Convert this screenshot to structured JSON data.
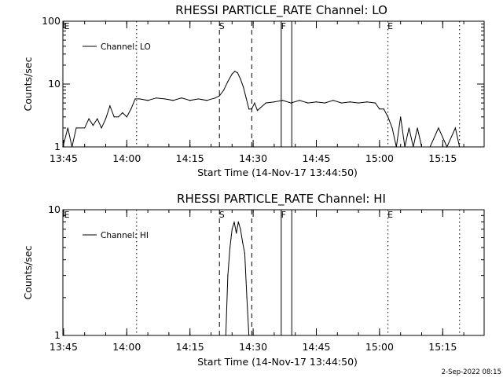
{
  "footer_date": "2-Sep-2022 08:15",
  "chart_data": [
    {
      "type": "line",
      "title": "RHESSI PARTICLE_RATE Channel: LO",
      "xlabel": "Start Time (14-Nov-17 13:44:50)",
      "ylabel": "Counts/sec",
      "y_scale": "log",
      "ylim": [
        1,
        100
      ],
      "y_ticks": [
        {
          "v": 1,
          "label": "1"
        },
        {
          "v": 10,
          "label": "10"
        },
        {
          "v": 100,
          "label": "100"
        }
      ],
      "xlim": [
        "13:44:50",
        "15:24:50"
      ],
      "x_ticks": [
        "13:45",
        "14:00",
        "14:15",
        "14:30",
        "14:45",
        "15:00",
        "15:15"
      ],
      "legend": {
        "label": "Channel: LO",
        "placement": "top-left"
      },
      "grid": false,
      "markers": [
        {
          "label": "E",
          "time": "13:44:50",
          "style": "dotted",
          "text_only": true
        },
        {
          "label": "",
          "time": "14:02:20",
          "style": "dotted"
        },
        {
          "label": "S",
          "time": "14:22:00",
          "style": "dashed"
        },
        {
          "label": "",
          "time": "14:29:40",
          "style": "dashed"
        },
        {
          "label": "F",
          "time": "14:36:40",
          "style": "solid"
        },
        {
          "label": "",
          "time": "14:39:10",
          "style": "solid"
        },
        {
          "label": "E",
          "time": "15:02:00",
          "style": "dotted"
        },
        {
          "label": "",
          "time": "15:19:00",
          "style": "dotted"
        }
      ],
      "series": [
        {
          "name": "Channel: LO",
          "x": [
            "13:44:50",
            "13:46:00",
            "13:47:00",
            "13:48:00",
            "13:50:00",
            "13:51:00",
            "13:52:00",
            "13:53:00",
            "13:54:00",
            "13:55:00",
            "13:56:00",
            "13:57:00",
            "13:58:00",
            "13:59:00",
            "14:00:00",
            "14:01:00",
            "14:02:00",
            "14:03:00",
            "14:05:00",
            "14:07:00",
            "14:09:00",
            "14:11:00",
            "14:13:00",
            "14:15:00",
            "14:17:00",
            "14:19:00",
            "14:21:00",
            "14:22:00",
            "14:23:00",
            "14:24:00",
            "14:25:00",
            "14:25:40",
            "14:26:20",
            "14:27:00",
            "14:27:40",
            "14:28:20",
            "14:29:00",
            "14:29:40",
            "14:30:20",
            "14:31:00",
            "14:33:00",
            "14:35:00",
            "14:37:00",
            "14:39:00",
            "14:41:00",
            "14:43:00",
            "14:45:00",
            "14:47:00",
            "14:49:00",
            "14:51:00",
            "14:53:00",
            "14:55:00",
            "14:57:00",
            "14:59:00",
            "15:00:00",
            "15:01:00",
            "15:02:00",
            "15:03:00",
            "15:04:00",
            "15:05:00",
            "15:06:00",
            "15:07:00",
            "15:08:00",
            "15:09:00",
            "15:10:00",
            "15:12:00",
            "15:14:00",
            "15:16:00",
            "15:18:00",
            "15:19:00"
          ],
          "values": [
            1.0,
            2.0,
            1.0,
            2.0,
            2.0,
            2.8,
            2.2,
            2.8,
            2.0,
            2.8,
            4.5,
            3.0,
            3.0,
            3.5,
            3.0,
            4.0,
            5.8,
            5.8,
            5.5,
            6.0,
            5.8,
            5.5,
            6.0,
            5.5,
            5.8,
            5.5,
            6.0,
            6.5,
            8.0,
            11.0,
            14.5,
            16.0,
            15.0,
            12.0,
            9.0,
            6.0,
            4.0,
            4.0,
            5.0,
            3.8,
            5.0,
            5.2,
            5.5,
            5.0,
            5.5,
            5.0,
            5.2,
            5.0,
            5.5,
            5.0,
            5.2,
            5.0,
            5.2,
            5.0,
            4.0,
            4.0,
            3.0,
            2.0,
            1.0,
            3.0,
            1.0,
            2.0,
            1.0,
            2.0,
            1.0,
            1.0,
            2.0,
            1.0,
            2.0,
            1.0
          ]
        }
      ]
    },
    {
      "type": "line",
      "title": "RHESSI PARTICLE_RATE Channel: HI",
      "xlabel": "Start Time (14-Nov-17 13:44:50)",
      "ylabel": "Counts/sec",
      "y_scale": "log",
      "ylim": [
        1,
        10
      ],
      "y_ticks": [
        {
          "v": 1,
          "label": "1"
        },
        {
          "v": 10,
          "label": "10"
        }
      ],
      "xlim": [
        "13:44:50",
        "15:24:50"
      ],
      "x_ticks": [
        "13:45",
        "14:00",
        "14:15",
        "14:30",
        "14:45",
        "15:00",
        "15:15"
      ],
      "legend": {
        "label": "Channel: HI",
        "placement": "top-left"
      },
      "grid": false,
      "markers": [
        {
          "label": "E",
          "time": "13:44:50",
          "style": "dotted",
          "text_only": true
        },
        {
          "label": "",
          "time": "14:02:20",
          "style": "dotted"
        },
        {
          "label": "S",
          "time": "14:22:00",
          "style": "dashed"
        },
        {
          "label": "",
          "time": "14:29:40",
          "style": "dashed"
        },
        {
          "label": "F",
          "time": "14:36:40",
          "style": "solid"
        },
        {
          "label": "",
          "time": "14:39:10",
          "style": "solid"
        },
        {
          "label": "E",
          "time": "15:02:00",
          "style": "dotted"
        },
        {
          "label": "",
          "time": "15:19:00",
          "style": "dotted"
        }
      ],
      "series": [
        {
          "name": "Channel: HI",
          "x": [
            "14:23:30",
            "14:24:00",
            "14:24:30",
            "14:25:00",
            "14:25:30",
            "14:26:00",
            "14:26:30",
            "14:27:00",
            "14:27:30",
            "14:28:00",
            "14:28:30",
            "14:29:00"
          ],
          "values": [
            1.0,
            3.0,
            5.0,
            7.0,
            8.0,
            6.5,
            8.0,
            7.0,
            5.5,
            4.5,
            2.0,
            1.0
          ]
        }
      ]
    }
  ]
}
